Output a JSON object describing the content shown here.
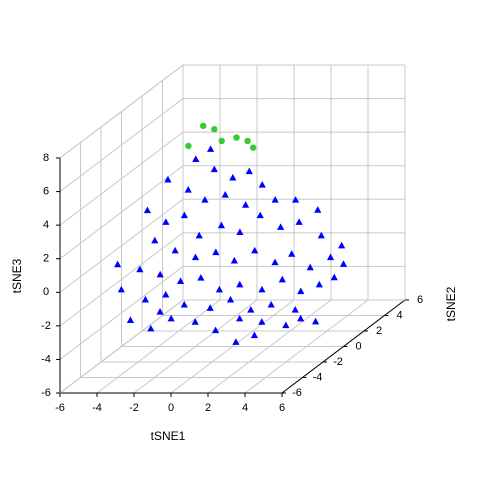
{
  "chart_data": {
    "type": "scatter3d",
    "xlabel": "tSNE1",
    "ylabel": "tSNE2",
    "zlabel": "tSNE3",
    "xlim": [
      -6,
      6
    ],
    "ylim": [
      -6,
      6
    ],
    "zlim": [
      -6,
      8
    ],
    "xticks": [
      -6,
      -4,
      -2,
      0,
      2,
      4,
      6
    ],
    "yticks": [
      -6,
      -4,
      -2,
      0,
      2,
      4,
      6
    ],
    "zticks": [
      -6,
      -4,
      -2,
      0,
      2,
      4,
      6,
      8
    ],
    "grid": true,
    "series": [
      {
        "color": "#0000ff",
        "marker": "triangle",
        "x": [
          -3.4,
          -4.2,
          -3.2,
          -2.2,
          -0.2,
          0.5,
          -4.6,
          -3.5,
          -2.6,
          -1.5,
          -0.4,
          1.2,
          2.3,
          3.5,
          -4.6,
          -3.6,
          -2.6,
          -1.8,
          -0.6,
          0.4,
          1.5,
          2.6,
          3.6,
          4.8,
          5.9,
          -4.2,
          -3.1,
          -2.0,
          -0.9,
          0.1,
          1.2,
          2.3,
          3.2,
          4.2,
          5.3,
          6.0,
          -5.1,
          -3.9,
          -2.8,
          -1.7,
          -0.6,
          0.4,
          1.5,
          2.7,
          3.8,
          4.8,
          5.8,
          5.5,
          -4.9,
          -3.6,
          -2.5,
          -1.5,
          -0.1,
          1.0,
          2.1,
          3.2,
          4.5,
          5.6,
          -3.3,
          -2.2,
          -1.1,
          0.2,
          1.3,
          2.4,
          3.4,
          3.8,
          5.1,
          5.9,
          2.6,
          -1.7
        ],
        "y": [
          4,
          4,
          4,
          4,
          2,
          2,
          2,
          2,
          2,
          2,
          2,
          2,
          2,
          2,
          0,
          0,
          0,
          0,
          0,
          0,
          0,
          0,
          0,
          0,
          0,
          0,
          0,
          0,
          0,
          0,
          0,
          0,
          0,
          0,
          0,
          0,
          -2,
          -2,
          -2,
          -2,
          -2,
          -2,
          -2,
          -2,
          -2,
          -2,
          -2,
          0,
          -2,
          -2,
          -2,
          -2,
          -2,
          -2,
          -2,
          -2,
          -2,
          -2,
          -4,
          -4,
          -4,
          -4,
          -4,
          -4,
          -4,
          -4,
          -4,
          -4,
          -4,
          -4
        ],
        "z": [
          3.9,
          3.3,
          2.7,
          2.2,
          3.5,
          2.7,
          3.0,
          2.4,
          1.8,
          2.1,
          1.5,
          1.8,
          1.8,
          1.2,
          2.1,
          1.4,
          1.8,
          0.6,
          1.2,
          0.8,
          1.8,
          1.1,
          1.4,
          0.6,
          0.0,
          0.3,
          -0.3,
          -0.7,
          -0.4,
          -0.9,
          -0.3,
          -1.0,
          -0.5,
          -1.3,
          -0.7,
          -1.1,
          -0.2,
          -0.5,
          -0.8,
          -1.2,
          -1.0,
          -1.7,
          -1.4,
          -1.7,
          -1.1,
          -1.8,
          -1.4,
          -1.9,
          -1.7,
          -2.3,
          -2.0,
          -2.6,
          -2.8,
          -2.3,
          -2.9,
          -2.6,
          -2.9,
          -3.6,
          -2.6,
          -3.1,
          -2.5,
          -2.7,
          -3.2,
          -3.9,
          -3.5,
          -2.7,
          -2.9,
          -2.5,
          -2.5,
          -2.1
        ]
      },
      {
        "color": "#33cc33",
        "marker": "circle",
        "x": [
          -4.6,
          -3.8,
          -3.2,
          -2.8,
          -2.0,
          -1.4,
          -1.1
        ],
        "y": [
          4,
          4,
          4,
          4,
          4,
          4,
          4
        ],
        "z": [
          4.1,
          5.3,
          5.1,
          4.4,
          4.6,
          4.4,
          4.0
        ]
      }
    ]
  }
}
